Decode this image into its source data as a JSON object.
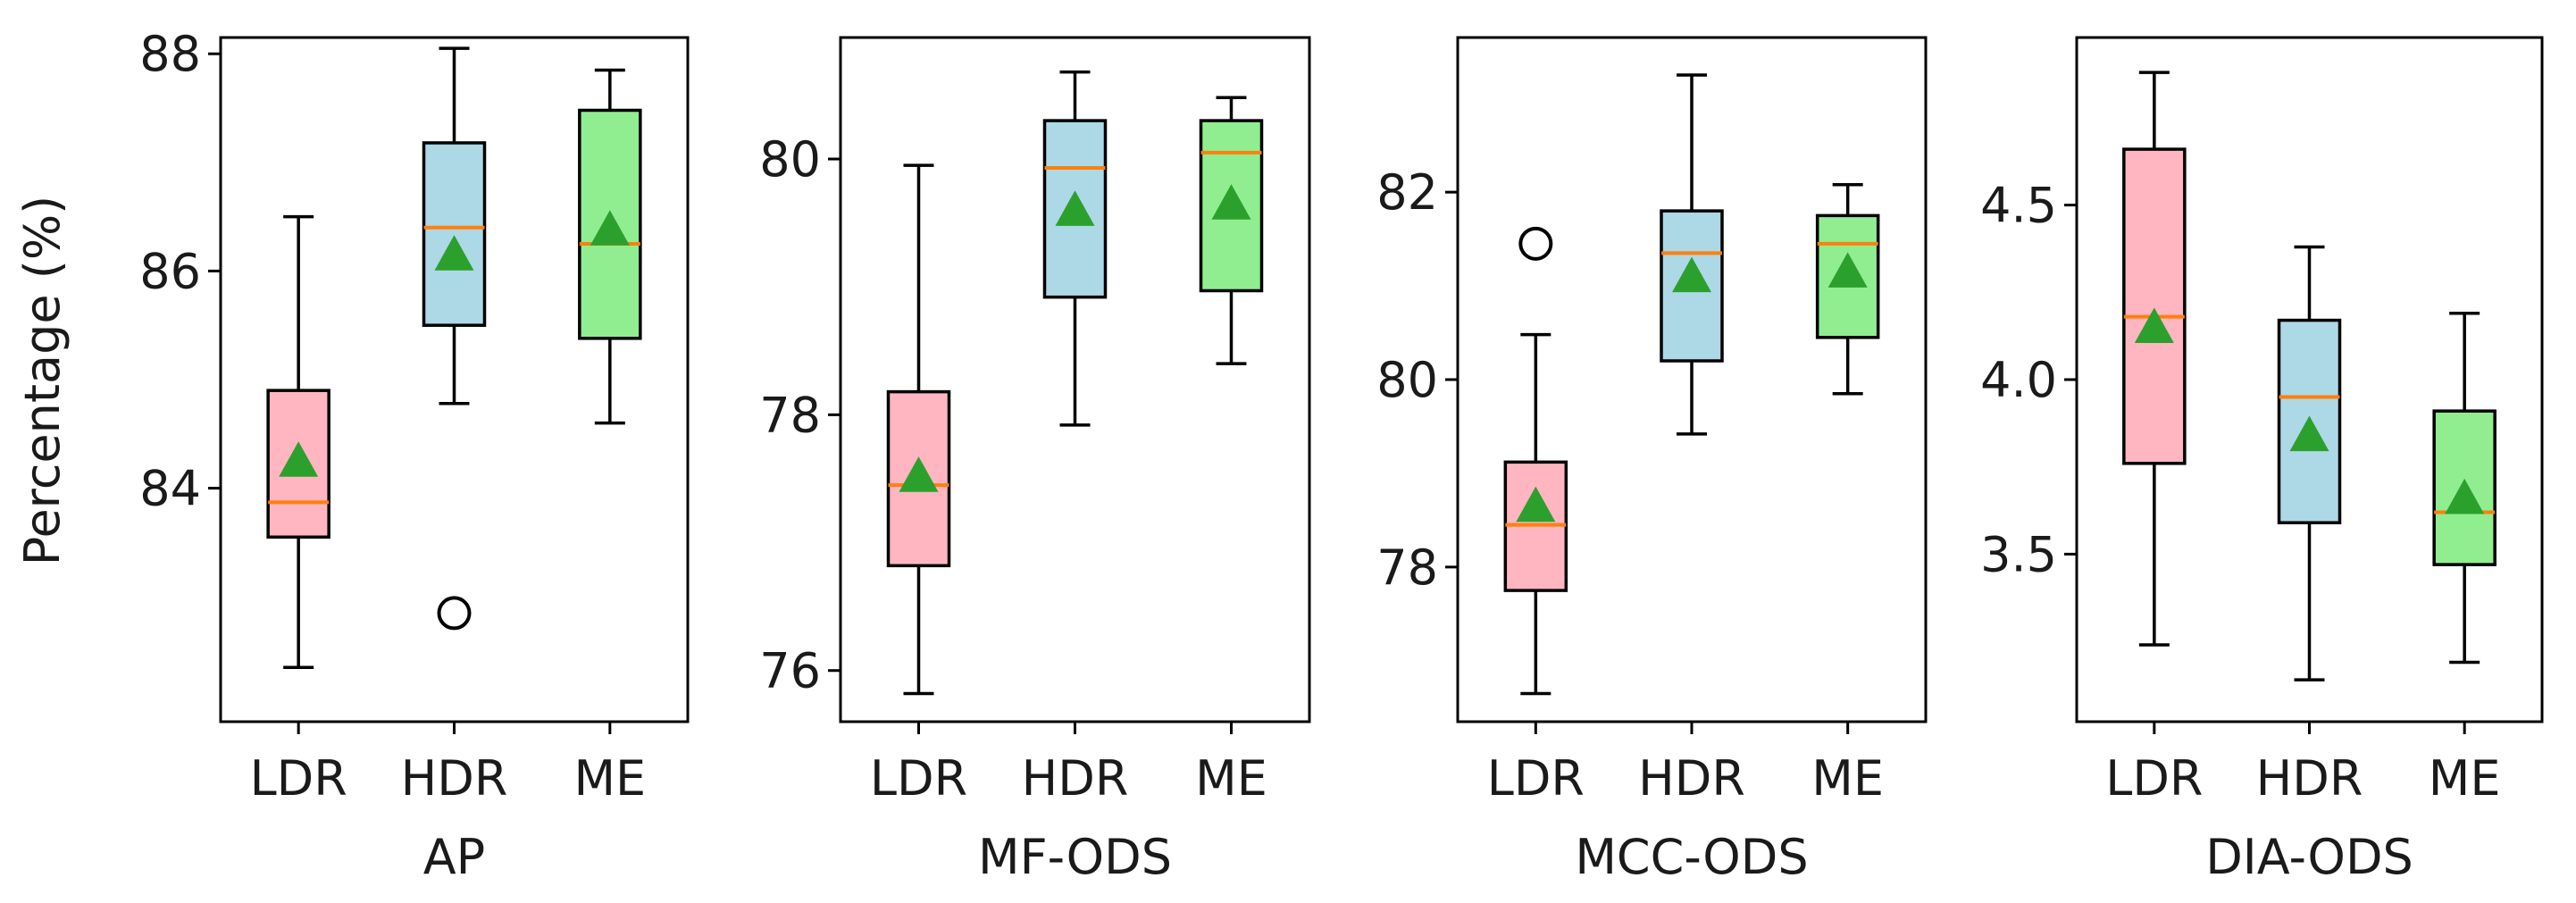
{
  "figure_ylabel": "Percentage (%)",
  "chart_data": [
    {
      "type": "box",
      "xlabel": "AP",
      "ylabel": "Percentage (%)",
      "ylim": [
        81.85,
        88.15
      ],
      "yticks": [
        84,
        86,
        88
      ],
      "categories": [
        "LDR",
        "HDR",
        "ME"
      ],
      "boxes": [
        {
          "name": "LDR",
          "whisker_low": 82.35,
          "q1": 83.55,
          "median": 83.87,
          "q3": 84.9,
          "whisker_high": 86.5,
          "mean": 84.25,
          "outliers": [],
          "color": "#ffb6c1"
        },
        {
          "name": "HDR",
          "whisker_low": 84.78,
          "q1": 85.5,
          "median": 86.4,
          "q3": 87.18,
          "whisker_high": 88.05,
          "mean": 86.15,
          "outliers": [
            82.85
          ],
          "color": "#add8e6"
        },
        {
          "name": "ME",
          "whisker_low": 84.6,
          "q1": 85.38,
          "median": 86.25,
          "q3": 87.48,
          "whisker_high": 87.85,
          "mean": 86.38,
          "outliers": [],
          "color": "#90ee90"
        }
      ]
    },
    {
      "type": "box",
      "xlabel": "MF-ODS",
      "ylabel": "",
      "ylim": [
        75.6,
        80.95
      ],
      "yticks": [
        76,
        78,
        80
      ],
      "categories": [
        "LDR",
        "HDR",
        "ME"
      ],
      "boxes": [
        {
          "name": "LDR",
          "whisker_low": 75.82,
          "q1": 76.82,
          "median": 77.45,
          "q3": 78.18,
          "whisker_high": 79.95,
          "mean": 77.52,
          "outliers": [],
          "color": "#ffb6c1"
        },
        {
          "name": "HDR",
          "whisker_low": 77.92,
          "q1": 78.92,
          "median": 79.93,
          "q3": 80.3,
          "whisker_high": 80.68,
          "mean": 79.6,
          "outliers": [],
          "color": "#add8e6"
        },
        {
          "name": "ME",
          "whisker_low": 78.4,
          "q1": 78.97,
          "median": 80.05,
          "q3": 80.3,
          "whisker_high": 80.48,
          "mean": 79.65,
          "outliers": [],
          "color": "#90ee90"
        }
      ]
    },
    {
      "type": "box",
      "xlabel": "MCC-ODS",
      "ylabel": "",
      "ylim": [
        76.35,
        83.65
      ],
      "yticks": [
        78,
        80,
        82
      ],
      "categories": [
        "LDR",
        "HDR",
        "ME"
      ],
      "boxes": [
        {
          "name": "LDR",
          "whisker_low": 76.65,
          "q1": 77.75,
          "median": 78.45,
          "q3": 79.12,
          "whisker_high": 80.48,
          "mean": 78.65,
          "outliers": [
            81.45
          ],
          "color": "#ffb6c1"
        },
        {
          "name": "HDR",
          "whisker_low": 79.42,
          "q1": 80.2,
          "median": 81.35,
          "q3": 81.8,
          "whisker_high": 83.25,
          "mean": 81.1,
          "outliers": [],
          "color": "#add8e6"
        },
        {
          "name": "ME",
          "whisker_low": 79.85,
          "q1": 80.45,
          "median": 81.45,
          "q3": 81.75,
          "whisker_high": 82.08,
          "mean": 81.15,
          "outliers": [],
          "color": "#90ee90"
        }
      ]
    },
    {
      "type": "box",
      "xlabel": "DIA-ODS",
      "ylabel": "",
      "ylim": [
        3.02,
        4.98
      ],
      "yticks": [
        3.5,
        4.0,
        4.5
      ],
      "ytick_labels": [
        "3.5",
        "4.0",
        "4.5"
      ],
      "categories": [
        "LDR",
        "HDR",
        "ME"
      ],
      "boxes": [
        {
          "name": "LDR",
          "whisker_low": 3.24,
          "q1": 3.76,
          "median": 4.18,
          "q3": 4.66,
          "whisker_high": 4.88,
          "mean": 4.15,
          "outliers": [],
          "color": "#ffb6c1"
        },
        {
          "name": "HDR",
          "whisker_low": 3.14,
          "q1": 3.59,
          "median": 3.95,
          "q3": 4.17,
          "whisker_high": 4.38,
          "mean": 3.84,
          "outliers": [],
          "color": "#add8e6"
        },
        {
          "name": "ME",
          "whisker_low": 3.19,
          "q1": 3.47,
          "median": 3.62,
          "q3": 3.91,
          "whisker_high": 4.19,
          "mean": 3.66,
          "outliers": [],
          "color": "#90ee90"
        }
      ]
    }
  ],
  "style": {
    "median_color": "#ff7f0e",
    "mean_marker_color": "#2ca02c",
    "frame_color": "#000000"
  }
}
